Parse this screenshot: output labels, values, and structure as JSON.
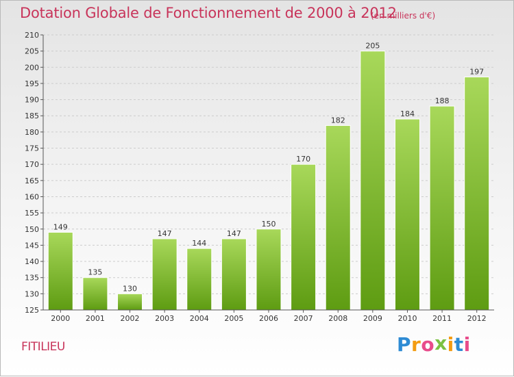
{
  "header": {
    "title": "Dotation Globale de Fonctionnement de 2000 à 2012",
    "unit": "(en milliers d'€)"
  },
  "footer": {
    "commune": "FITILIEU",
    "logo_letters": [
      "P",
      "r",
      "o",
      "x",
      "i",
      "t",
      "i"
    ],
    "logo_colors": [
      "#2e8bd4",
      "#f39c12",
      "#e84c8b",
      "#7bc142",
      "#f39c12",
      "#2e8bd4",
      "#e84c8b"
    ]
  },
  "colors": {
    "bar_light": "#a8d85a",
    "bar_dark": "#5e9c12",
    "axis": "#555555",
    "grid": "#cccccc"
  },
  "chart_data": {
    "type": "bar",
    "categories": [
      "2000",
      "2001",
      "2002",
      "2003",
      "2004",
      "2005",
      "2006",
      "2007",
      "2008",
      "2009",
      "2010",
      "2011",
      "2012"
    ],
    "values": [
      149,
      135,
      130,
      147,
      144,
      147,
      150,
      170,
      182,
      205,
      184,
      188,
      197
    ],
    "title": "Dotation Globale de Fonctionnement de 2000 à 2012",
    "ylim": [
      125,
      210
    ],
    "yticks": [
      125,
      130,
      135,
      140,
      145,
      150,
      155,
      160,
      165,
      170,
      175,
      180,
      185,
      190,
      195,
      200,
      205,
      210
    ],
    "grid": true,
    "legend": "none"
  }
}
